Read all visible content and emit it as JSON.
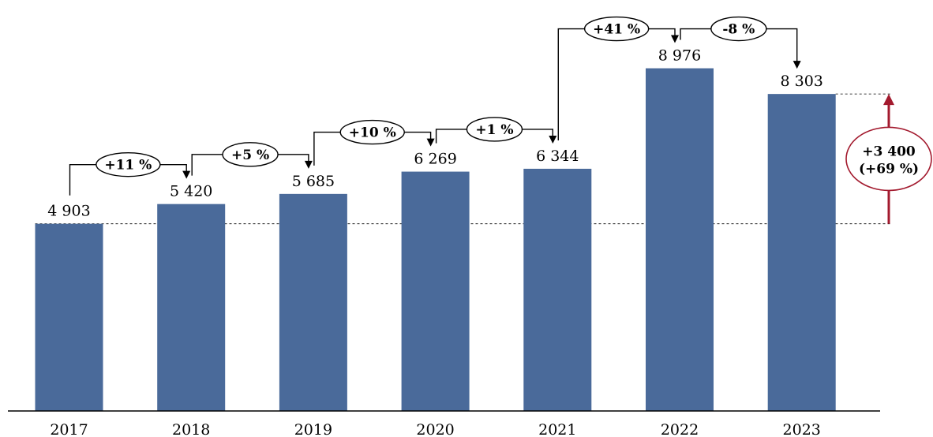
{
  "chart_data": {
    "type": "bar",
    "categories": [
      "2017",
      "2018",
      "2019",
      "2020",
      "2021",
      "2022",
      "2023"
    ],
    "values": [
      4903,
      5420,
      5685,
      6269,
      6344,
      8976,
      8303
    ],
    "value_labels": [
      "4 903",
      "5 420",
      "5 685",
      "6 269",
      "6 344",
      "8 976",
      "8 303"
    ],
    "changes": [
      "+11 %",
      "+5 %",
      "+10 %",
      "+1 %",
      "+41 %",
      "-8 %"
    ],
    "total_change": {
      "line1": "+3 400",
      "line2": "(+69 %)",
      "from": "2017",
      "to": "2023"
    },
    "title": "",
    "xlabel": "",
    "ylabel": "",
    "ylim": [
      0,
      9800
    ],
    "grid": false,
    "legend": "none",
    "colors": {
      "bar": "#4a6a9a",
      "total_accent": "#a31a2e"
    }
  }
}
